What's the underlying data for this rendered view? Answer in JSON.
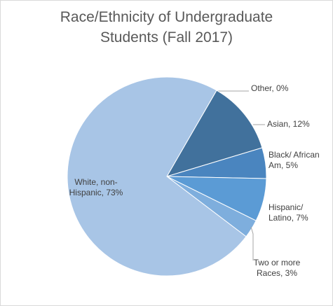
{
  "chart_data": {
    "type": "pie",
    "title_line1": "Race/Ethnicity of Undergraduate",
    "title_line2": "Students (Fall 2017)",
    "slices": [
      {
        "name": "Other",
        "value": 0,
        "color": "#9DC3E6",
        "label_lines": [
          "Other, 0%"
        ]
      },
      {
        "name": "Asian",
        "value": 12,
        "color": "#41719C",
        "label_lines": [
          "Asian, 12%"
        ]
      },
      {
        "name": "Black/ African Am",
        "value": 5,
        "color": "#4A85BF",
        "label_lines": [
          "Black/ African",
          "Am, 5%"
        ]
      },
      {
        "name": "Hispanic/ Latino",
        "value": 7,
        "color": "#5B9BD5",
        "label_lines": [
          "Hispanic/",
          "Latino, 7%"
        ]
      },
      {
        "name": "Two or more Races",
        "value": 3,
        "color": "#7EAEDD",
        "label_lines": [
          "Two or more",
          "Races, 3%"
        ]
      },
      {
        "name": "White, non-Hispanic",
        "value": 73,
        "color": "#A8C5E6",
        "label_lines": [
          "White, non-",
          "Hispanic, 73%"
        ]
      }
    ]
  }
}
